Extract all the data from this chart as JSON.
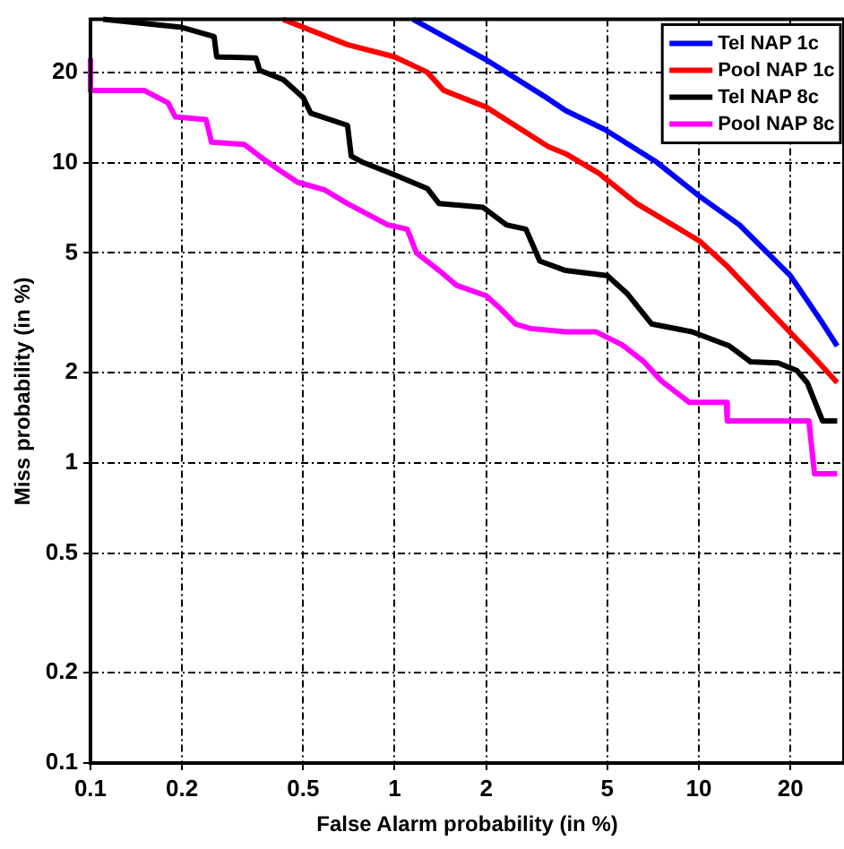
{
  "chart_data": {
    "type": "line",
    "xlabel": "False Alarm probability (in %)",
    "ylabel": "Miss probability (in %)",
    "log": "xy",
    "grid": true,
    "legend": "top right",
    "marker": "none",
    "line_style": "solid",
    "xlim": [
      0.1,
      30
    ],
    "ylim": [
      0.1,
      30
    ],
    "xticks": [
      0.1,
      0.2,
      0.5,
      1,
      2,
      5,
      10,
      20
    ],
    "yticks": [
      0.1,
      0.2,
      0.5,
      1,
      2,
      5,
      10,
      20
    ],
    "series": [
      {
        "name": "Tel NAP 1c",
        "color": "#0000ff",
        "x": [
          1.15,
          2,
          3.2,
          3.65,
          4.9,
          7.3,
          10,
          13.6,
          20,
          25.5,
          28.5
        ],
        "values": [
          30,
          22,
          16.3,
          14.9,
          12.9,
          10,
          7.75,
          6.2,
          4.2,
          2.92,
          2.45
        ]
      },
      {
        "name": "Pool NAP 1c",
        "color": "#ff0000",
        "x": [
          0.43,
          0.7,
          1,
          1.28,
          1.45,
          2,
          3.2,
          3.65,
          4.7,
          6.25,
          10,
          12.3,
          18.2,
          23.4,
          28.5
        ],
        "values": [
          30,
          24.7,
          22.5,
          20,
          17.4,
          15.3,
          11.3,
          10.7,
          9.2,
          7.3,
          5.5,
          4.55,
          3,
          2.3,
          1.85
        ]
      },
      {
        "name": "Tel NAP 8c",
        "color": "#000000",
        "x": [
          0.11,
          0.2,
          0.255,
          0.26,
          0.35,
          0.36,
          0.43,
          0.5,
          0.53,
          0.7,
          0.72,
          0.79,
          1,
          1.28,
          1.4,
          1.95,
          2.33,
          2.7,
          3,
          3.65,
          5,
          5.8,
          7,
          9.5,
          12.6,
          14.8,
          18.2,
          21,
          22.7,
          25.5,
          28.5
        ],
        "values": [
          30,
          28.2,
          26.3,
          22.5,
          22.3,
          20.3,
          18.9,
          16.5,
          14.6,
          13.3,
          10.5,
          10,
          9.1,
          8.2,
          7.3,
          7.1,
          6.2,
          6,
          4.7,
          4.37,
          4.2,
          3.67,
          2.9,
          2.73,
          2.45,
          2.17,
          2.15,
          2.03,
          1.85,
          1.38,
          1.38
        ]
      },
      {
        "name": "Pool NAP 8c",
        "color": "#ff00ff",
        "x": [
          0.1,
          0.1,
          0.15,
          0.18,
          0.19,
          0.24,
          0.25,
          0.32,
          0.36,
          0.42,
          0.48,
          0.59,
          0.7,
          0.95,
          1.1,
          1.18,
          1.4,
          1.6,
          2,
          2.2,
          2.5,
          2.8,
          3.65,
          4.6,
          5.6,
          6.6,
          7.5,
          9.3,
          12.3,
          12.4,
          23,
          24,
          28.5
        ],
        "values": [
          22,
          17.4,
          17.4,
          15.8,
          14.2,
          13.9,
          11.7,
          11.5,
          10.5,
          9.4,
          8.6,
          8.1,
          7.3,
          6.2,
          6,
          5,
          4.37,
          3.9,
          3.6,
          3.3,
          2.9,
          2.8,
          2.73,
          2.73,
          2.47,
          2.17,
          1.88,
          1.59,
          1.59,
          1.38,
          1.38,
          0.92,
          0.92
        ]
      }
    ]
  }
}
